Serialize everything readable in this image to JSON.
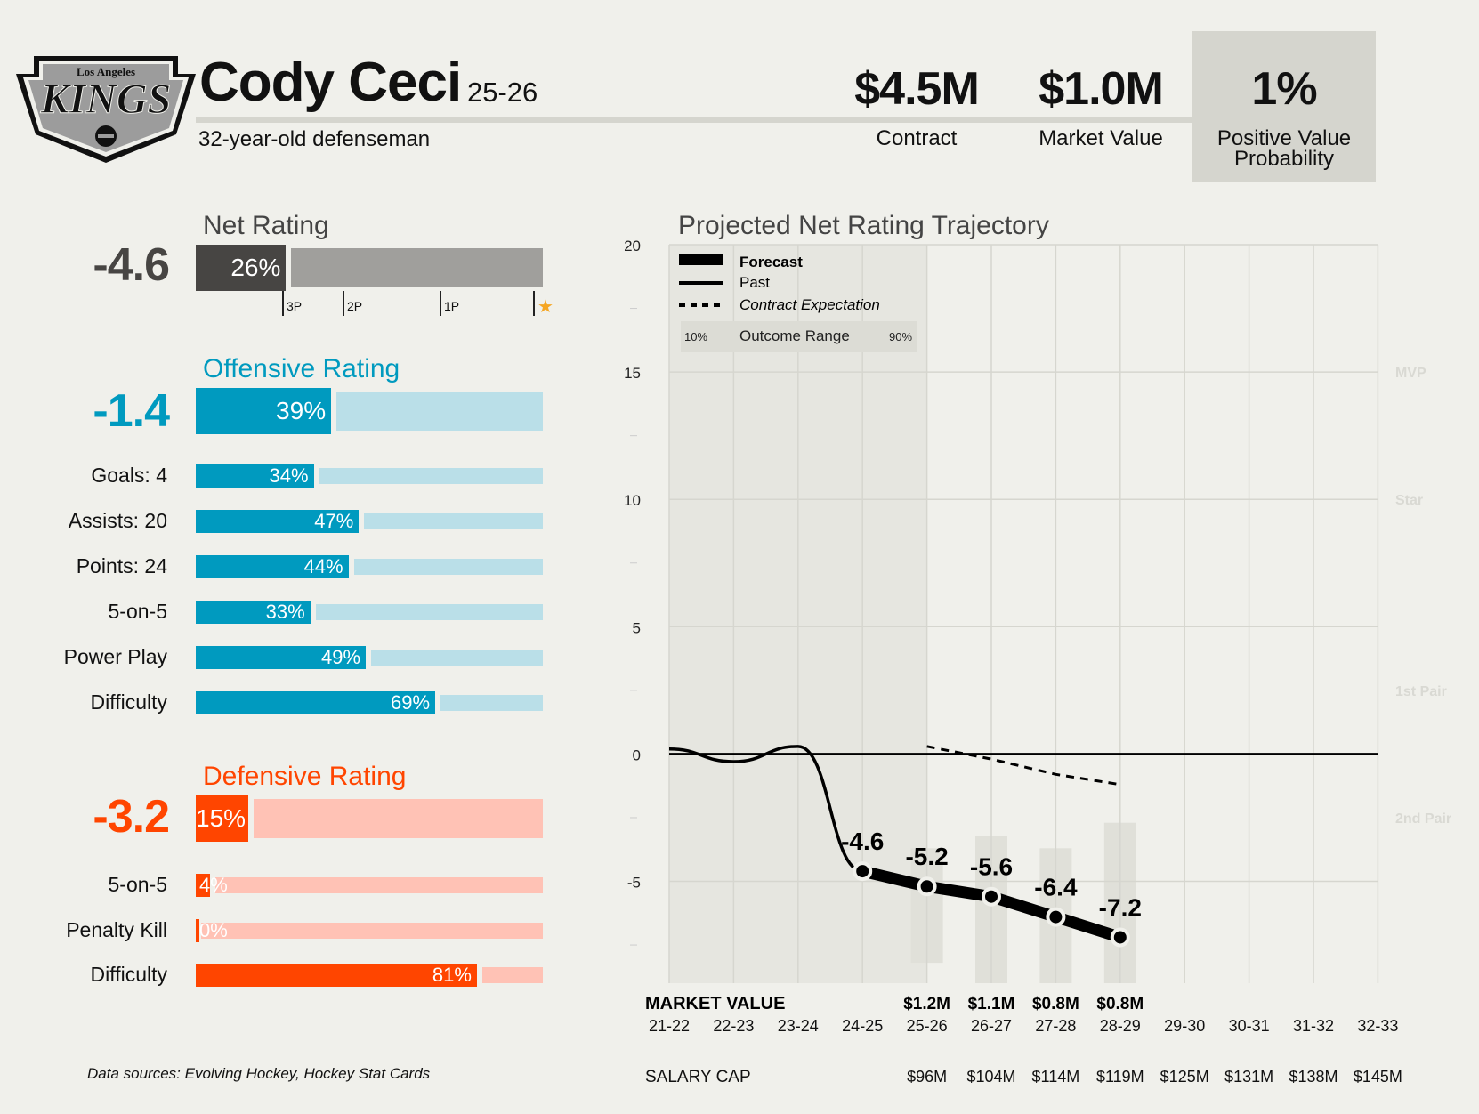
{
  "team": {
    "logo_top_text": "Los Angeles",
    "logo_main_text": "KINGS"
  },
  "player": {
    "name": "Cody Ceci",
    "season": "25-26",
    "subtitle": "32-year-old defenseman"
  },
  "kpis": [
    {
      "value": "$4.5M",
      "label": "Contract"
    },
    {
      "value": "$1.0M",
      "label": "Market Value"
    },
    {
      "value": "1%",
      "label_line1": "Positive Value",
      "label_line2": "Probability"
    }
  ],
  "net_rating": {
    "title": "Net Rating",
    "value": "-4.6",
    "percentile": 26,
    "percentile_label": "26%",
    "markers": [
      {
        "label": "3P",
        "pct": 25
      },
      {
        "label": "2P",
        "pct": 42
      },
      {
        "label": "1P",
        "pct": 70
      },
      {
        "label": "star",
        "pct": 97
      }
    ],
    "star_glyph": "★"
  },
  "offensive": {
    "title": "Offensive Rating",
    "value": "-1.4",
    "percentile": 39,
    "percentile_label": "39%",
    "rows": [
      {
        "label": "Goals: 4",
        "pct": 34,
        "pct_label": "34%"
      },
      {
        "label": "Assists: 20",
        "pct": 47,
        "pct_label": "47%"
      },
      {
        "label": "Points: 24",
        "pct": 44,
        "pct_label": "44%"
      },
      {
        "label": "5-on-5",
        "pct": 33,
        "pct_label": "33%"
      },
      {
        "label": "Power Play",
        "pct": 49,
        "pct_label": "49%"
      },
      {
        "label": "Difficulty",
        "pct": 69,
        "pct_label": "69%"
      }
    ]
  },
  "defensive": {
    "title": "Defensive Rating",
    "value": "-3.2",
    "percentile": 15,
    "percentile_label": "15%",
    "rows": [
      {
        "label": "5-on-5",
        "pct": 4,
        "pct_label": "4%"
      },
      {
        "label": "Penalty Kill",
        "pct": 0,
        "pct_label": "0%"
      },
      {
        "label": "Difficulty",
        "pct": 81,
        "pct_label": "81%"
      }
    ]
  },
  "colors": {
    "net_dark": "#474543",
    "net_light": "#a09f9c",
    "off_dark": "#009abf",
    "off_light": "#badfe8",
    "def_dark": "#ff4500",
    "def_light": "#ffc2b5",
    "kpi_box": "#d5d5ce",
    "background": "#f0f0eb",
    "star": "#f5a623"
  },
  "footer": {
    "sources": "Data sources: Evolving Hockey, Hockey Stat Cards"
  },
  "chart_data": {
    "type": "line",
    "title": "Projected Net Rating Trajectory",
    "x": [
      "21-22",
      "22-23",
      "23-24",
      "24-25",
      "25-26",
      "26-27",
      "27-28",
      "28-29",
      "29-30",
      "30-31",
      "31-32",
      "32-33"
    ],
    "ylim": [
      -9,
      20
    ],
    "yticks": [
      20,
      15,
      10,
      5,
      0,
      -5
    ],
    "grid": true,
    "reference_bands": [
      {
        "label": "MVP",
        "y": 15
      },
      {
        "label": "Star",
        "y": 10
      },
      {
        "label": "1st Pair",
        "y": 2.5
      },
      {
        "label": "2nd Pair",
        "y": -2.5
      }
    ],
    "series": [
      {
        "name": "Past",
        "x": [
          "21-22",
          "22-23",
          "23-24",
          "24-25"
        ],
        "values": [
          0.2,
          -0.3,
          0.3,
          -4.6
        ]
      },
      {
        "name": "Forecast",
        "x": [
          "24-25",
          "25-26",
          "26-27",
          "27-28",
          "28-29"
        ],
        "values": [
          -4.6,
          -5.2,
          -5.6,
          -6.4,
          -7.2
        ],
        "labels": [
          "-4.6",
          "-5.2",
          "-5.6",
          "-6.4",
          "-7.2"
        ]
      },
      {
        "name": "Contract Expectation",
        "x": [
          "25-26",
          "26-27",
          "27-28",
          "28-29"
        ],
        "values": [
          0.3,
          -0.2,
          -0.8,
          -1.2
        ]
      }
    ],
    "outcome_range": [
      {
        "x": "25-26",
        "p10": -8.2,
        "p90": -3.7
      },
      {
        "x": "26-27",
        "p10": -9.0,
        "p90": -3.2
      },
      {
        "x": "27-28",
        "p10": -9.0,
        "p90": -3.7
      },
      {
        "x": "28-29",
        "p10": -9.0,
        "p90": -2.7
      }
    ],
    "legend": {
      "placement": "top-left",
      "forecast": "Forecast",
      "past": "Past",
      "contract": "Contract Expectation",
      "range_low": "10%",
      "range_label": "Outcome Range",
      "range_high": "90%"
    },
    "market_value": {
      "label": "MARKET VALUE",
      "values": {
        "25-26": "$1.2M",
        "26-27": "$1.1M",
        "27-28": "$0.8M",
        "28-29": "$0.8M"
      }
    },
    "salary_cap": {
      "label": "SALARY CAP",
      "values": {
        "25-26": "$96M",
        "26-27": "$104M",
        "27-28": "$114M",
        "28-29": "$119M",
        "29-30": "$125M",
        "30-31": "$131M",
        "31-32": "$138M",
        "32-33": "$145M"
      }
    }
  }
}
